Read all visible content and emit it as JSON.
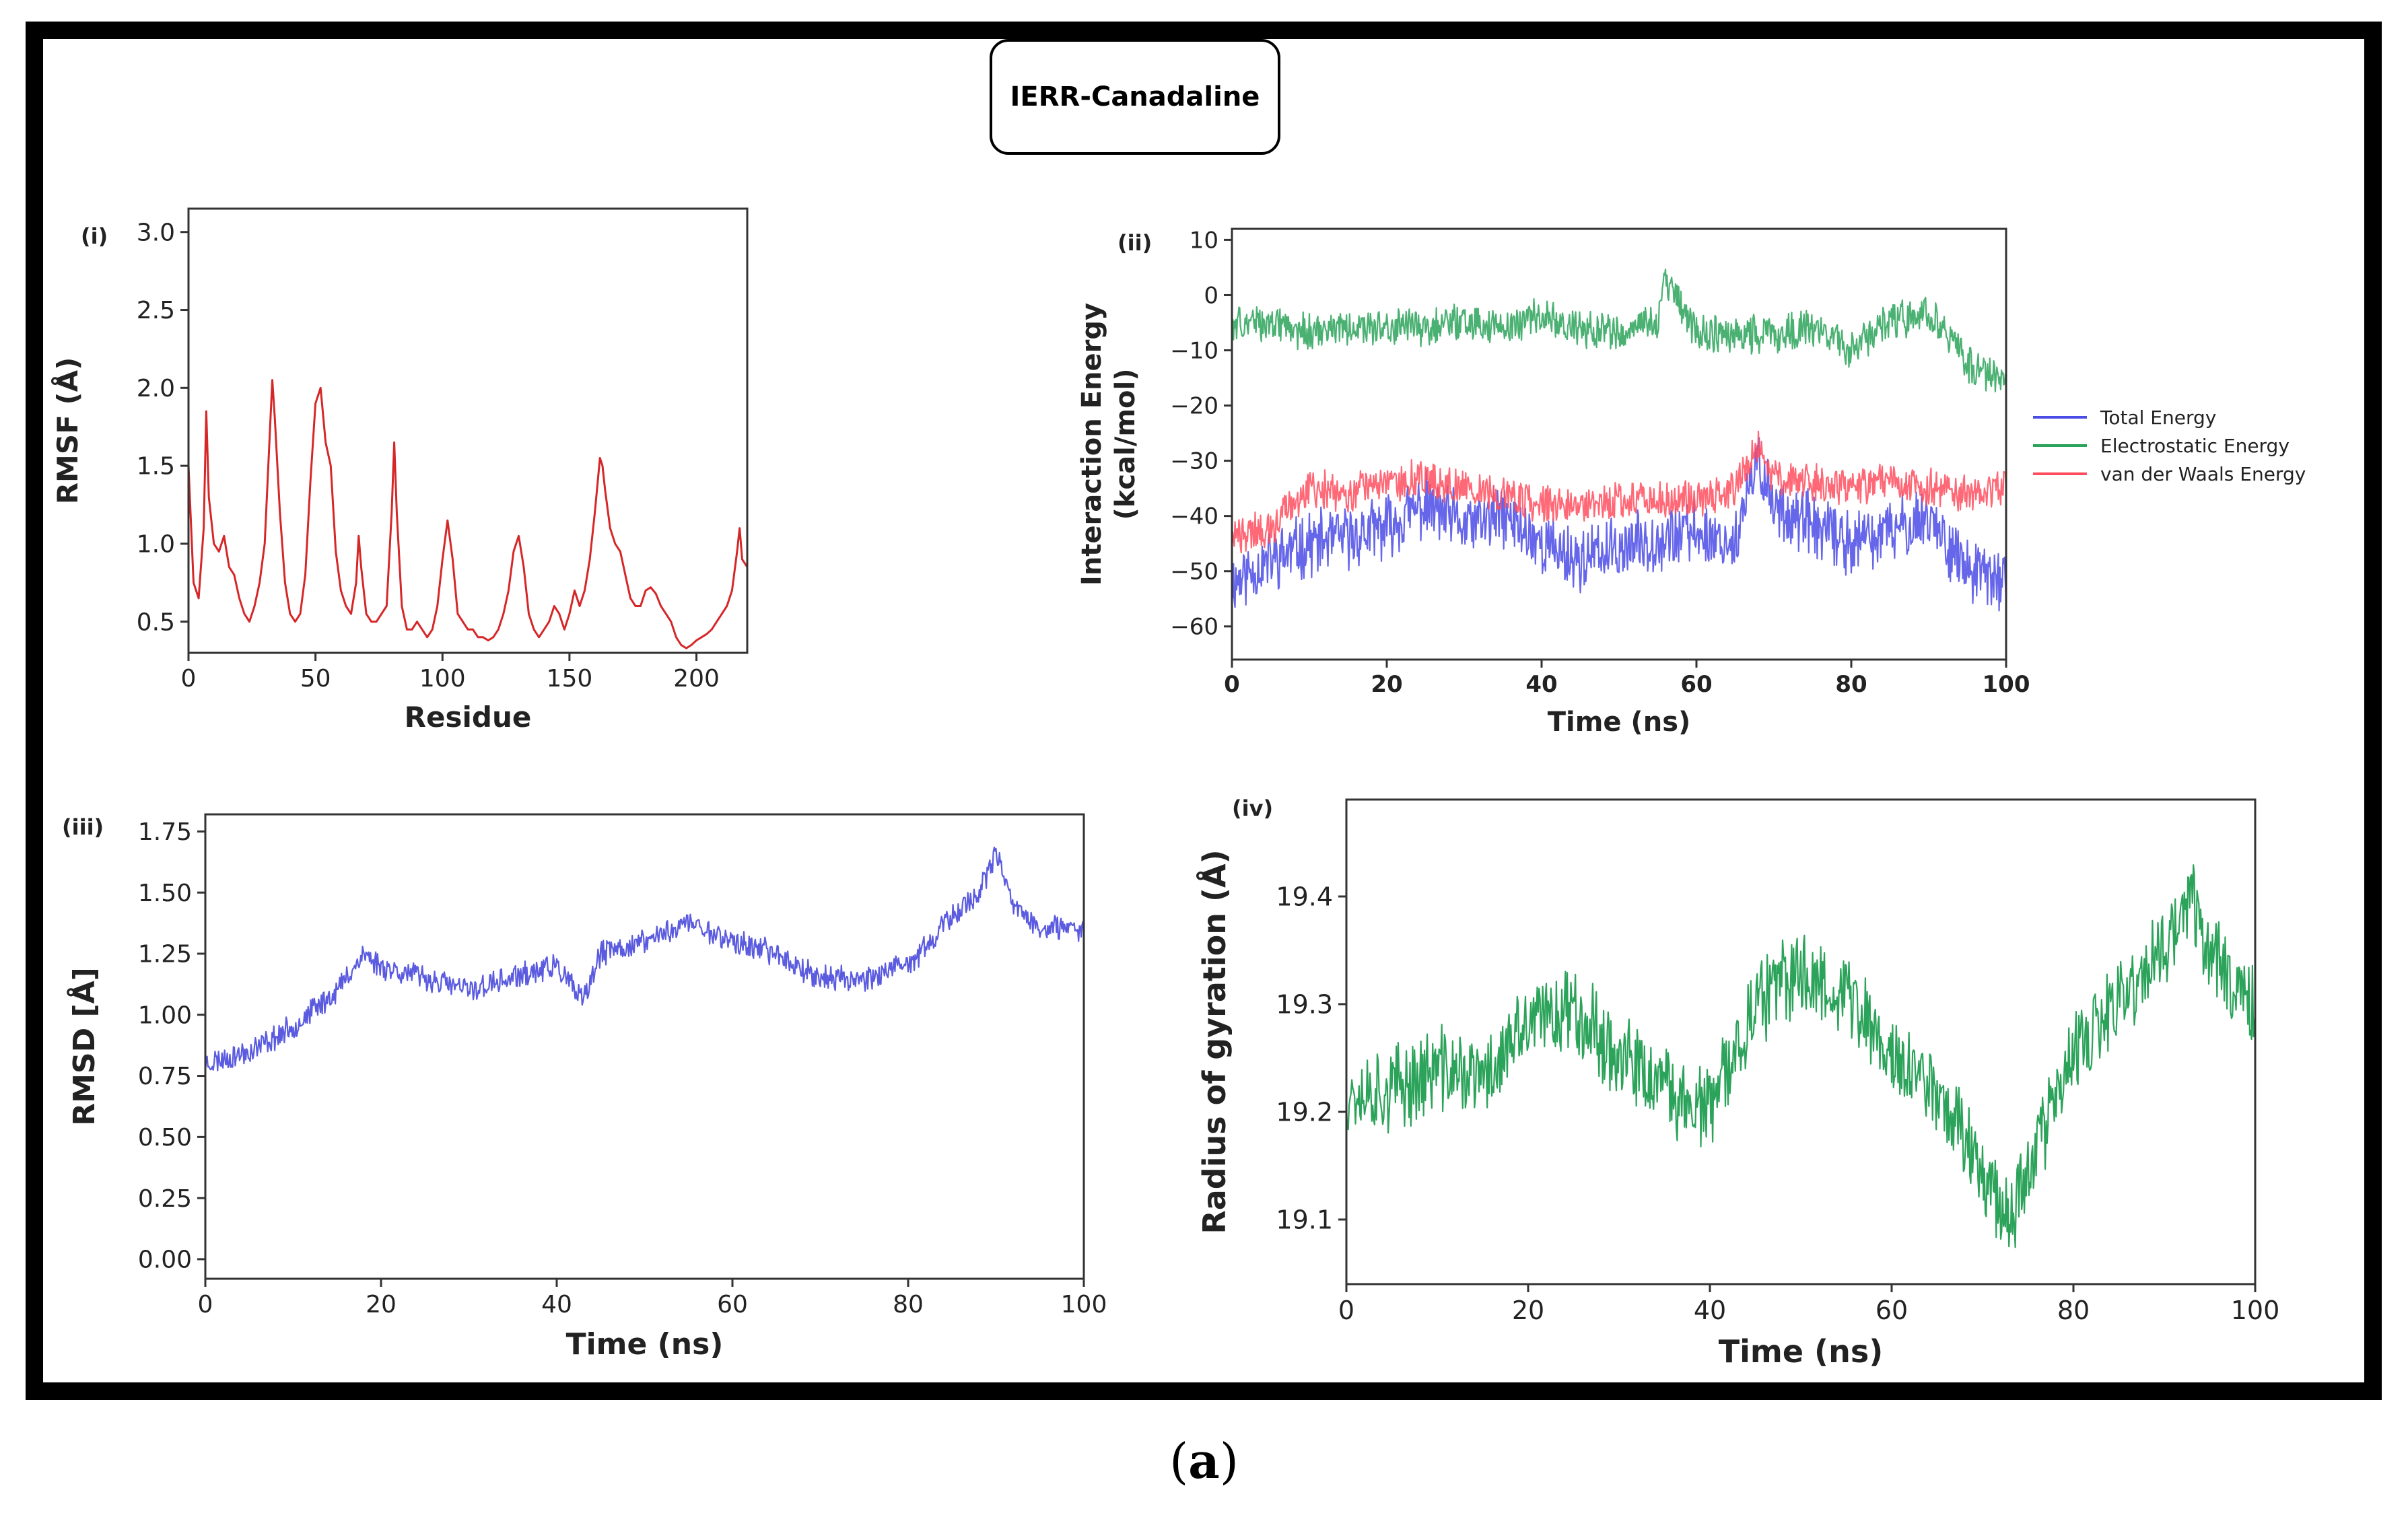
{
  "figure": {
    "title": "IERR-Canadaline",
    "caption_open": "(",
    "caption_letter": "a",
    "caption_close": ")"
  },
  "colors": {
    "rmsf": "#d62728",
    "rmsd": "#5b5be0",
    "rg": "#2ca35a",
    "total": "#4b4be6",
    "elec": "#2ca35a",
    "vdw": "#ff4d5e"
  },
  "chart_data": [
    {
      "id": "rmsf",
      "panel_label": "(i)",
      "type": "line",
      "title": "",
      "xlabel": "Residue",
      "ylabel": "RMSF (Å)",
      "xlim": [
        0,
        220
      ],
      "ylim": [
        0.3,
        3.15
      ],
      "xticks": [
        0,
        50,
        100,
        150,
        200
      ],
      "yticks": [
        0.5,
        1.0,
        1.5,
        2.0,
        2.5,
        3.0
      ],
      "ytick_labels": [
        "0.5",
        "1.0",
        "1.5",
        "2.0",
        "2.5",
        "3.0"
      ],
      "series": [
        {
          "name": "RMSF",
          "color": "#d62728",
          "x": [
            0,
            2,
            4,
            6,
            7,
            8,
            10,
            12,
            14,
            16,
            18,
            20,
            22,
            24,
            26,
            28,
            30,
            32,
            33,
            34,
            36,
            38,
            40,
            42,
            44,
            46,
            48,
            50,
            52,
            54,
            56,
            58,
            60,
            62,
            64,
            66,
            67,
            68,
            70,
            72,
            74,
            76,
            78,
            80,
            81,
            82,
            84,
            86,
            88,
            90,
            92,
            94,
            96,
            98,
            100,
            102,
            104,
            106,
            108,
            110,
            112,
            114,
            116,
            118,
            120,
            122,
            124,
            126,
            128,
            130,
            132,
            134,
            136,
            138,
            140,
            142,
            144,
            146,
            148,
            150,
            152,
            154,
            156,
            158,
            160,
            162,
            163,
            164,
            166,
            168,
            170,
            172,
            174,
            176,
            178,
            180,
            182,
            184,
            186,
            188,
            190,
            192,
            194,
            196,
            198,
            200,
            202,
            204,
            206,
            208,
            210,
            212,
            214,
            216,
            217,
            218,
            220
          ],
          "y": [
            1.5,
            0.75,
            0.65,
            1.1,
            1.85,
            1.3,
            1.0,
            0.95,
            1.05,
            0.85,
            0.8,
            0.65,
            0.55,
            0.5,
            0.6,
            0.75,
            1.0,
            1.7,
            2.05,
            1.8,
            1.2,
            0.75,
            0.55,
            0.5,
            0.55,
            0.8,
            1.4,
            1.9,
            2.0,
            1.65,
            1.5,
            0.95,
            0.7,
            0.6,
            0.55,
            0.75,
            1.05,
            0.85,
            0.55,
            0.5,
            0.5,
            0.55,
            0.6,
            1.2,
            1.65,
            1.2,
            0.6,
            0.45,
            0.45,
            0.5,
            0.45,
            0.4,
            0.45,
            0.6,
            0.9,
            1.15,
            0.9,
            0.55,
            0.5,
            0.45,
            0.45,
            0.4,
            0.4,
            0.38,
            0.4,
            0.45,
            0.55,
            0.7,
            0.95,
            1.05,
            0.85,
            0.55,
            0.45,
            0.4,
            0.45,
            0.5,
            0.6,
            0.55,
            0.45,
            0.55,
            0.7,
            0.6,
            0.7,
            0.9,
            1.2,
            1.55,
            1.5,
            1.35,
            1.1,
            1.0,
            0.95,
            0.8,
            0.65,
            0.6,
            0.6,
            0.7,
            0.72,
            0.68,
            0.6,
            0.55,
            0.5,
            0.4,
            0.35,
            0.33,
            0.35,
            0.38,
            0.4,
            0.42,
            0.45,
            0.5,
            0.55,
            0.6,
            0.7,
            0.95,
            1.1,
            0.9,
            0.85
          ]
        }
      ]
    },
    {
      "id": "energy",
      "panel_label": "(ii)",
      "type": "line",
      "title": "",
      "xlabel": "Time (ns)",
      "ylabel": "Interaction Energy",
      "ylabel2": "(kcal/mol)",
      "xlim": [
        0,
        100
      ],
      "ylim": [
        -66,
        12
      ],
      "xticks": [
        0,
        20,
        40,
        60,
        80,
        100
      ],
      "yticks": [
        -60,
        -50,
        -40,
        -30,
        -20,
        -10,
        0,
        10
      ],
      "ytick_labels": [
        "−60",
        "−50",
        "−40",
        "−30",
        "−20",
        "−10",
        "0",
        "10"
      ],
      "legend": [
        "Total Energy",
        "Electrostatic Energy",
        "van der Waals Energy"
      ],
      "legend_position": "right",
      "series": [
        {
          "name": "Total Energy",
          "color": "#4b4be6",
          "noise": 5.0,
          "x": [
            0,
            5,
            10,
            15,
            20,
            25,
            30,
            35,
            40,
            45,
            50,
            55,
            60,
            65,
            68,
            70,
            75,
            80,
            85,
            90,
            95,
            100
          ],
          "y": [
            -52,
            -48,
            -45,
            -44,
            -42,
            -38,
            -42,
            -40,
            -45,
            -48,
            -46,
            -44,
            -43,
            -45,
            -30,
            -38,
            -42,
            -45,
            -43,
            -40,
            -50,
            -52
          ]
        },
        {
          "name": "Electrostatic Energy",
          "color": "#2ca35a",
          "noise": 3.0,
          "x": [
            0,
            5,
            10,
            15,
            20,
            25,
            30,
            35,
            40,
            45,
            50,
            55,
            56,
            60,
            65,
            70,
            75,
            80,
            85,
            90,
            95,
            100
          ],
          "y": [
            -5,
            -5,
            -7,
            -6,
            -6,
            -6,
            -5,
            -6,
            -4,
            -6,
            -7,
            -5,
            3,
            -7,
            -7,
            -7,
            -6,
            -10,
            -5,
            -3,
            -12,
            -16
          ]
        },
        {
          "name": "van der Waals Energy",
          "color": "#ff4d5e",
          "noise": 3.0,
          "x": [
            0,
            5,
            10,
            15,
            20,
            25,
            30,
            35,
            40,
            45,
            50,
            55,
            60,
            65,
            68,
            70,
            75,
            80,
            85,
            90,
            95,
            100
          ],
          "y": [
            -44,
            -42,
            -35,
            -36,
            -34,
            -33,
            -35,
            -36,
            -38,
            -38,
            -37,
            -37,
            -37,
            -35,
            -27,
            -33,
            -34,
            -35,
            -33,
            -35,
            -36,
            -35
          ]
        }
      ]
    },
    {
      "id": "rmsd",
      "panel_label": "(iii)",
      "type": "line",
      "title": "",
      "xlabel": "Time (ns)",
      "ylabel": "RMSD [Å]",
      "xlim": [
        0,
        100
      ],
      "ylim": [
        -0.08,
        1.82
      ],
      "xticks": [
        0,
        20,
        40,
        60,
        80,
        100
      ],
      "yticks": [
        0.0,
        0.25,
        0.5,
        0.75,
        1.0,
        1.25,
        1.5,
        1.75
      ],
      "ytick_labels": [
        "0.00",
        "0.25",
        "0.50",
        "0.75",
        "1.00",
        "1.25",
        "1.50",
        "1.75"
      ],
      "series": [
        {
          "name": "RMSD",
          "color": "#5b5be0",
          "noise": 0.045,
          "x": [
            0,
            5,
            10,
            15,
            18,
            20,
            25,
            30,
            35,
            40,
            43,
            45,
            50,
            55,
            60,
            65,
            70,
            75,
            80,
            85,
            88,
            90,
            92,
            95,
            100
          ],
          "y": [
            0.8,
            0.85,
            0.95,
            1.1,
            1.25,
            1.2,
            1.15,
            1.1,
            1.15,
            1.2,
            1.05,
            1.25,
            1.3,
            1.38,
            1.3,
            1.25,
            1.15,
            1.15,
            1.2,
            1.4,
            1.5,
            1.65,
            1.45,
            1.35,
            1.35
          ]
        }
      ]
    },
    {
      "id": "rg",
      "panel_label": "(iv)",
      "type": "line",
      "title": "",
      "xlabel": "Time (ns)",
      "ylabel": "Radius of gyration (Å)",
      "xlim": [
        0,
        100
      ],
      "ylim": [
        19.04,
        19.49
      ],
      "xticks": [
        0,
        20,
        40,
        60,
        80,
        100
      ],
      "yticks": [
        19.1,
        19.2,
        19.3,
        19.4
      ],
      "ytick_labels": [
        "19.1",
        "19.2",
        "19.3",
        "19.4"
      ],
      "series": [
        {
          "name": "Radius of gyration",
          "color": "#2ca35a",
          "noise": 0.035,
          "x": [
            0,
            5,
            10,
            15,
            20,
            25,
            30,
            35,
            40,
            45,
            50,
            55,
            60,
            65,
            70,
            73,
            75,
            80,
            85,
            90,
            93,
            95,
            100
          ],
          "y": [
            19.22,
            19.22,
            19.24,
            19.23,
            19.28,
            19.3,
            19.25,
            19.22,
            19.2,
            19.3,
            19.33,
            19.31,
            19.25,
            19.22,
            19.15,
            19.1,
            19.15,
            19.25,
            19.3,
            19.35,
            19.4,
            19.35,
            19.3
          ]
        }
      ]
    }
  ]
}
